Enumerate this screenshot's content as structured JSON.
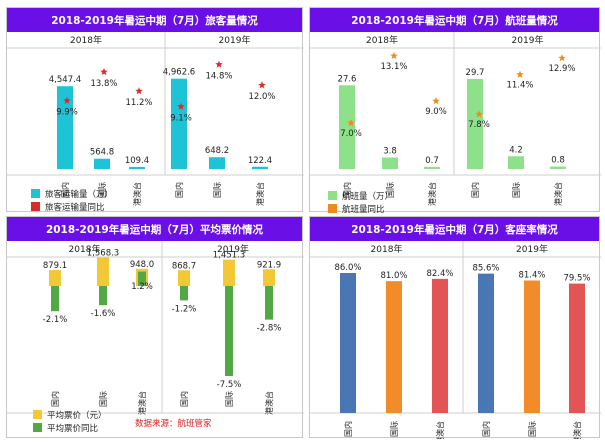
{
  "colors": {
    "header_bg": "#6a0fe6",
    "passenger_bar": "#1ec3d6",
    "star_red": "#d92b2b",
    "flight_bar": "#8fe08a",
    "star_orange": "#ef8a1e",
    "price_bar": "#f3c836",
    "price_change_bar": "#52a844",
    "load_domestic": "#4a77b4",
    "load_international": "#f28c28",
    "load_hkmotw": "#e25554"
  },
  "years": [
    "2018年",
    "2019年"
  ],
  "categories": [
    "国内",
    "国际",
    "港澳台"
  ],
  "source_note": "数据来源：航班管家",
  "chart_data": [
    {
      "type": "bar",
      "title": "2018-2019年暑运中期（7月）旅客量情况",
      "groups": [
        "2018年",
        "2019年"
      ],
      "categories": [
        "国内",
        "国际",
        "港澳台"
      ],
      "series": [
        {
          "name": "旅客运输量（万）",
          "kind": "bar",
          "values": [
            [
              4547.4,
              564.8,
              109.4
            ],
            [
              4962.6,
              648.2,
              122.4
            ]
          ],
          "labels": [
            [
              "4,547.4",
              "564.8",
              "109.4"
            ],
            [
              "4,962.6",
              "648.2",
              "122.4"
            ]
          ]
        },
        {
          "name": "旅客运输量同比",
          "kind": "marker",
          "values": [
            [
              9.9,
              13.8,
              11.2
            ],
            [
              9.1,
              14.8,
              12.0
            ]
          ],
          "labels": [
            [
              "9.9%",
              "13.8%",
              "11.2%"
            ],
            [
              "9.1%",
              "14.8%",
              "12.0%"
            ]
          ]
        }
      ]
    },
    {
      "type": "bar",
      "title": "2018-2019年暑运中期（7月）航班量情况",
      "groups": [
        "2018年",
        "2019年"
      ],
      "categories": [
        "国内",
        "国际",
        "港澳台"
      ],
      "series": [
        {
          "name": "航班量（万）",
          "kind": "bar",
          "values": [
            [
              27.6,
              3.8,
              0.7
            ],
            [
              29.7,
              4.2,
              0.8
            ]
          ],
          "labels": [
            [
              "27.6",
              "3.8",
              "0.7"
            ],
            [
              "29.7",
              "4.2",
              "0.8"
            ]
          ]
        },
        {
          "name": "航班量同比",
          "kind": "marker",
          "values": [
            [
              7.0,
              13.1,
              9.0
            ],
            [
              7.8,
              11.4,
              12.9
            ]
          ],
          "labels": [
            [
              "7.0%",
              "13.1%",
              "9.0%"
            ],
            [
              "7.8%",
              "11.4%",
              "12.9%"
            ]
          ]
        }
      ]
    },
    {
      "type": "bar",
      "title": "2018-2019年暑运中期（7月）平均票价情况",
      "groups": [
        "2018年",
        "2019年"
      ],
      "categories": [
        "国内",
        "国际",
        "港澳台"
      ],
      "series": [
        {
          "name": "平均票价（元）",
          "kind": "bar",
          "values": [
            [
              879.1,
              1568.3,
              948.0
            ],
            [
              868.7,
              1451.3,
              921.9
            ]
          ],
          "labels": [
            [
              "879.1",
              "1,568.3",
              "948.0"
            ],
            [
              "868.7",
              "1,451.3",
              "921.9"
            ]
          ]
        },
        {
          "name": "平均票价同比",
          "kind": "bar",
          "values": [
            [
              -2.1,
              -1.6,
              1.2
            ],
            [
              -1.2,
              -7.5,
              -2.8
            ]
          ],
          "labels": [
            [
              "-2.1%",
              "-1.6%",
              "1.2%"
            ],
            [
              "-1.2%",
              "-7.5%",
              "-2.8%"
            ]
          ]
        }
      ]
    },
    {
      "type": "bar",
      "title": "2018-2019年暑运中期（7月）客座率情况",
      "groups": [
        "2018年",
        "2019年"
      ],
      "categories": [
        "国内",
        "国际",
        "港澳台"
      ],
      "series": [
        {
          "name": "客座率",
          "kind": "bar",
          "values": [
            [
              86.0,
              81.0,
              82.4
            ],
            [
              85.6,
              81.4,
              79.5
            ]
          ],
          "labels": [
            [
              "86.0%",
              "81.0%",
              "82.4%"
            ],
            [
              "85.6%",
              "81.4%",
              "79.5%"
            ]
          ]
        }
      ]
    }
  ]
}
